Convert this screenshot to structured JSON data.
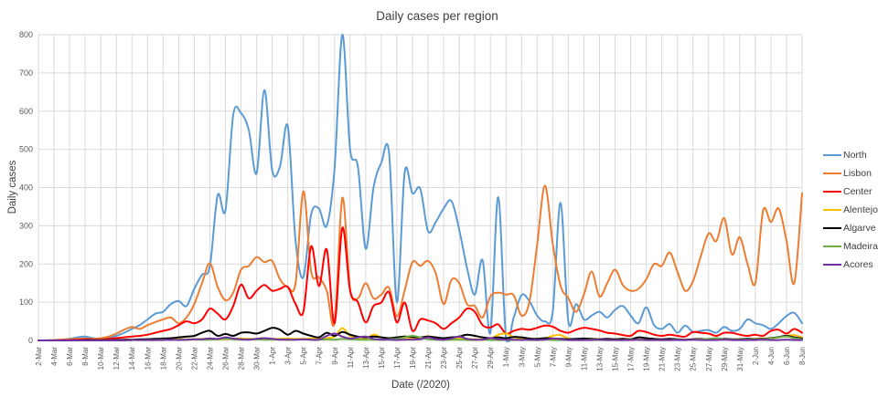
{
  "chart_data": {
    "type": "line",
    "title": "Daily cases per region",
    "xlabel": "Date (/2020)",
    "ylabel": "Daily cases",
    "ylim": [
      0,
      800
    ],
    "y_tick_step": 100,
    "grid": true,
    "legend_position": "right",
    "x_ticks_every": 2,
    "x": [
      "2-Mar",
      "3-Mar",
      "4-Mar",
      "5-Mar",
      "6-Mar",
      "7-Mar",
      "8-Mar",
      "9-Mar",
      "10-Mar",
      "11-Mar",
      "12-Mar",
      "13-Mar",
      "14-Mar",
      "15-Mar",
      "16-Mar",
      "17-Mar",
      "18-Mar",
      "19-Mar",
      "20-Mar",
      "21-Mar",
      "22-Mar",
      "23-Mar",
      "24-Mar",
      "25-Mar",
      "26-Mar",
      "27-Mar",
      "28-Mar",
      "29-Mar",
      "30-Mar",
      "31-Mar",
      "1-Apr",
      "2-Apr",
      "3-Apr",
      "4-Apr",
      "5-Apr",
      "6-Apr",
      "7-Apr",
      "8-Apr",
      "9-Apr",
      "10-Apr",
      "11-Apr",
      "12-Apr",
      "13-Apr",
      "14-Apr",
      "15-Apr",
      "16-Apr",
      "17-Apr",
      "18-Apr",
      "19-Apr",
      "20-Apr",
      "21-Apr",
      "22-Apr",
      "23-Apr",
      "24-Apr",
      "25-Apr",
      "26-Apr",
      "27-Apr",
      "28-Apr",
      "29-Apr",
      "30-Apr",
      "1-May",
      "2-May",
      "3-May",
      "4-May",
      "5-May",
      "6-May",
      "7-May",
      "8-May",
      "9-May",
      "10-May",
      "11-May",
      "12-May",
      "13-May",
      "14-May",
      "15-May",
      "16-May",
      "17-May",
      "18-May",
      "19-May",
      "20-May",
      "21-May",
      "22-May",
      "23-May",
      "24-May",
      "25-May",
      "26-May",
      "27-May",
      "28-May",
      "29-May",
      "30-May",
      "31-May",
      "1-Jun",
      "2-Jun",
      "3-Jun",
      "4-Jun",
      "5-Jun",
      "6-Jun",
      "7-Jun",
      "8-Jun"
    ],
    "series": [
      {
        "name": "North",
        "color": "#5B9BD5",
        "values": [
          0,
          0,
          1,
          2,
          4,
          8,
          10,
          6,
          3,
          6,
          12,
          20,
          30,
          40,
          55,
          70,
          75,
          95,
          103,
          90,
          135,
          172,
          193,
          380,
          340,
          590,
          595,
          550,
          437,
          655,
          445,
          455,
          560,
          260,
          165,
          330,
          345,
          300,
          450,
          800,
          500,
          455,
          240,
          400,
          465,
          490,
          100,
          440,
          385,
          397,
          286,
          310,
          345,
          365,
          290,
          190,
          120,
          210,
          20,
          375,
          10,
          60,
          119,
          103,
          65,
          50,
          75,
          360,
          50,
          95,
          55,
          65,
          75,
          60,
          80,
          90,
          65,
          45,
          87,
          40,
          30,
          43,
          20,
          39,
          22,
          25,
          27,
          20,
          35,
          25,
          30,
          55,
          45,
          40,
          30,
          45,
          64,
          72,
          45
        ]
      },
      {
        "name": "Lisbon",
        "color": "#ED7D31",
        "values": [
          0,
          0,
          1,
          2,
          3,
          4,
          5,
          4,
          6,
          10,
          18,
          28,
          35,
          30,
          40,
          48,
          55,
          60,
          45,
          60,
          95,
          150,
          202,
          140,
          105,
          125,
          185,
          195,
          218,
          205,
          208,
          160,
          140,
          150,
          390,
          180,
          165,
          130,
          47,
          373,
          134,
          110,
          150,
          110,
          120,
          138,
          63,
          131,
          205,
          195,
          208,
          175,
          95,
          158,
          150,
          95,
          90,
          60,
          115,
          125,
          120,
          118,
          65,
          100,
          250,
          405,
          254,
          143,
          111,
          75,
          120,
          180,
          115,
          150,
          185,
          145,
          130,
          135,
          160,
          200,
          195,
          230,
          180,
          130,
          155,
          220,
          280,
          260,
          320,
          225,
          270,
          200,
          150,
          340,
          310,
          345,
          260,
          150,
          385
        ]
      },
      {
        "name": "Center",
        "color": "#FF0000",
        "values": [
          0,
          0,
          0,
          1,
          1,
          2,
          3,
          2,
          2,
          4,
          6,
          8,
          10,
          12,
          15,
          20,
          25,
          30,
          40,
          50,
          45,
          55,
          83,
          70,
          55,
          90,
          146,
          110,
          130,
          145,
          130,
          135,
          140,
          95,
          75,
          246,
          142,
          238,
          45,
          295,
          130,
          100,
          47,
          90,
          99,
          126,
          47,
          99,
          25,
          55,
          52,
          45,
          30,
          45,
          60,
          83,
          75,
          40,
          34,
          42,
          18,
          25,
          30,
          28,
          33,
          39,
          36,
          25,
          20,
          28,
          33,
          30,
          26,
          20,
          18,
          14,
          12,
          25,
          22,
          15,
          12,
          15,
          12,
          10,
          22,
          20,
          18,
          12,
          20,
          20,
          15,
          12,
          15,
          12,
          25,
          28,
          18,
          30,
          20
        ]
      },
      {
        "name": "Alentejo",
        "color": "#FFC000",
        "values": [
          0,
          0,
          0,
          0,
          0,
          0,
          1,
          1,
          1,
          1,
          1,
          2,
          2,
          2,
          3,
          3,
          3,
          4,
          3,
          3,
          3,
          4,
          4,
          3,
          3,
          4,
          5,
          4,
          4,
          5,
          4,
          4,
          5,
          4,
          4,
          5,
          4,
          6,
          10,
          32,
          12,
          5,
          4,
          15,
          8,
          4,
          3,
          4,
          5,
          6,
          11,
          5,
          3,
          4,
          6,
          4,
          3,
          3,
          4,
          15,
          18,
          8,
          3,
          3,
          4,
          5,
          12,
          14,
          5,
          3,
          3,
          4,
          3,
          2,
          3,
          4,
          3,
          2,
          3,
          3,
          2,
          3,
          2,
          2,
          3,
          3,
          4,
          3,
          3,
          2,
          3,
          3,
          4,
          5,
          6,
          8,
          12,
          14,
          8
        ]
      },
      {
        "name": "Algarve",
        "color": "#000000",
        "values": [
          0,
          0,
          0,
          0,
          0,
          0,
          1,
          1,
          1,
          1,
          1,
          2,
          2,
          3,
          3,
          4,
          5,
          6,
          8,
          10,
          12,
          20,
          25,
          12,
          17,
          12,
          20,
          21,
          18,
          25,
          33,
          28,
          15,
          25,
          18,
          12,
          8,
          20,
          12,
          22,
          15,
          10,
          8,
          10,
          8,
          6,
          8,
          10,
          9,
          8,
          10,
          8,
          6,
          8,
          10,
          15,
          12,
          8,
          6,
          8,
          6,
          9,
          8,
          5,
          4,
          6,
          5,
          4,
          3,
          4,
          5,
          4,
          3,
          4,
          3,
          4,
          3,
          8,
          6,
          4,
          3,
          4,
          3,
          2,
          3,
          4,
          3,
          3,
          4,
          3,
          3,
          4,
          3,
          4,
          6,
          9,
          12,
          8,
          5
        ]
      },
      {
        "name": "Madeira",
        "color": "#70AD47",
        "values": [
          0,
          0,
          0,
          0,
          0,
          0,
          0,
          0,
          0,
          0,
          0,
          0,
          1,
          1,
          1,
          1,
          2,
          1,
          2,
          2,
          3,
          2,
          2,
          3,
          4,
          3,
          2,
          3,
          3,
          2,
          2,
          3,
          2,
          2,
          3,
          2,
          2,
          3,
          2,
          4,
          3,
          2,
          2,
          2,
          2,
          3,
          4,
          8,
          12,
          8,
          3,
          2,
          1,
          2,
          2,
          1,
          1,
          2,
          1,
          1,
          1,
          1,
          2,
          1,
          1,
          2,
          1,
          1,
          1,
          1,
          1,
          2,
          1,
          1,
          1,
          1,
          2,
          1,
          1,
          1,
          1,
          1,
          2,
          1,
          2,
          3,
          4,
          6,
          3,
          2,
          2,
          2,
          2,
          3,
          5,
          8,
          10,
          6,
          3
        ]
      },
      {
        "name": "Acores",
        "color": "#7030A0",
        "values": [
          0,
          0,
          0,
          0,
          0,
          0,
          0,
          0,
          0,
          0,
          0,
          0,
          1,
          1,
          1,
          1,
          1,
          2,
          1,
          2,
          3,
          3,
          5,
          4,
          8,
          5,
          3,
          2,
          4,
          6,
          4,
          2,
          2,
          2,
          3,
          2,
          2,
          12,
          18,
          10,
          5,
          8,
          10,
          4,
          2,
          2,
          1,
          2,
          2,
          3,
          8,
          3,
          2,
          5,
          10,
          4,
          2,
          2,
          6,
          3,
          2,
          2,
          1,
          2,
          1,
          2,
          5,
          3,
          1,
          1,
          1,
          1,
          2,
          1,
          1,
          1,
          1,
          2,
          1,
          1,
          1,
          1,
          1,
          1,
          2,
          1,
          1,
          1,
          2,
          1,
          1,
          1,
          1,
          2,
          1,
          1,
          2,
          1,
          1
        ]
      }
    ],
    "y_tick_labels": [
      "0",
      "100",
      "200",
      "300",
      "400",
      "500",
      "600",
      "700",
      "800"
    ],
    "legend_entries": [
      "North",
      "Lisbon",
      "Center",
      "Alentejo",
      "Algarve",
      "Madeira",
      "Acores"
    ]
  },
  "colors": {
    "grid": "#D9D9D9",
    "axis_line": "#9B9B9B",
    "tick_text": "#595959",
    "title_text": "#404040",
    "background": "#FFFFFF"
  }
}
